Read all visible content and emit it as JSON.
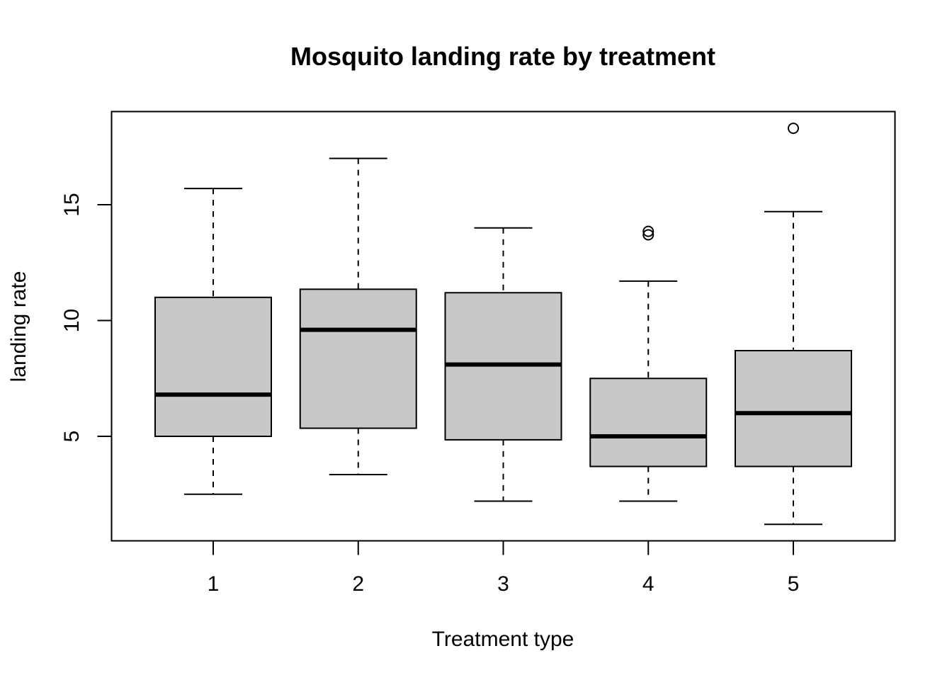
{
  "chart_data": {
    "type": "boxplot",
    "title": "Mosquito landing rate by treatment",
    "xlabel": "Treatment type",
    "ylabel": "landing rate",
    "categories": [
      "1",
      "2",
      "3",
      "4",
      "5"
    ],
    "y_ticks": [
      5,
      10,
      15
    ],
    "y_tick_labels": [
      "5",
      "10",
      "15"
    ],
    "ylim": [
      0.6,
      19.1
    ],
    "grid": false,
    "legend": "none",
    "box_fill": "#c8c8c8",
    "line_color": "#000000",
    "boxes": [
      {
        "category": "1",
        "whisker_low": 2.5,
        "q1": 5.0,
        "median": 6.8,
        "q3": 11.0,
        "whisker_high": 15.7,
        "outliers": []
      },
      {
        "category": "2",
        "whisker_low": 3.35,
        "q1": 5.35,
        "median": 9.6,
        "q3": 11.35,
        "whisker_high": 17.0,
        "outliers": []
      },
      {
        "category": "3",
        "whisker_low": 2.2,
        "q1": 4.85,
        "median": 8.1,
        "q3": 11.2,
        "whisker_high": 14.0,
        "outliers": []
      },
      {
        "category": "4",
        "whisker_low": 2.2,
        "q1": 3.7,
        "median": 5.0,
        "q3": 7.5,
        "whisker_high": 11.7,
        "outliers": [
          13.7,
          13.85
        ]
      },
      {
        "category": "5",
        "whisker_low": 1.2,
        "q1": 3.7,
        "median": 6.0,
        "q3": 8.7,
        "whisker_high": 14.7,
        "outliers": [
          18.3
        ]
      }
    ]
  }
}
